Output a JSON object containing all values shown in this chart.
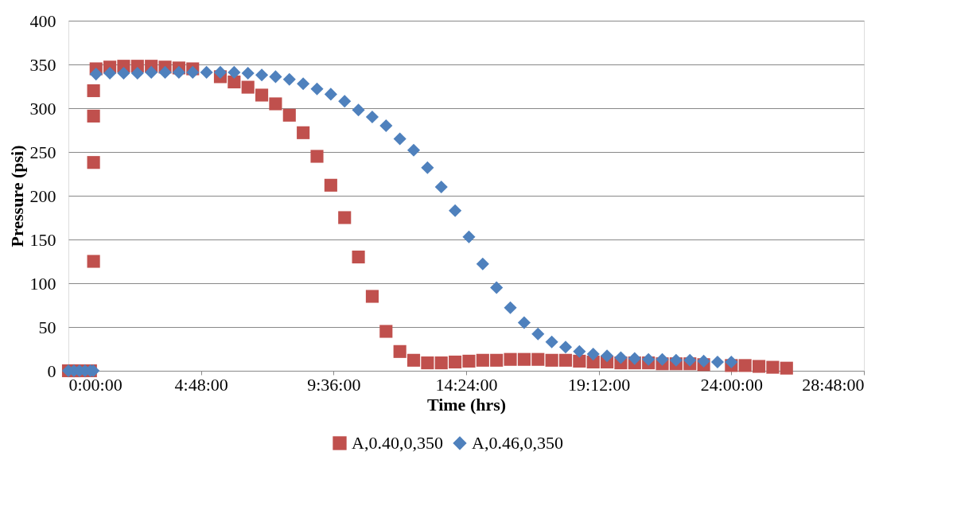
{
  "chart_data": {
    "type": "scatter",
    "xlabel": "Time (hrs)",
    "ylabel": "Pressure (psi)",
    "xlim": [
      0,
      28.8
    ],
    "xticks": [
      {
        "value": 0,
        "label": "0:00:00"
      },
      {
        "value": 4.8,
        "label": "4:48:00"
      },
      {
        "value": 9.6,
        "label": "9:36:00"
      },
      {
        "value": 14.4,
        "label": "14:24:00"
      },
      {
        "value": 19.2,
        "label": "19:12:00"
      },
      {
        "value": 24,
        "label": "24:00:00"
      },
      {
        "value": 28.8,
        "label": "28:48:00"
      }
    ],
    "ylim": [
      0,
      400
    ],
    "yticks": [
      0,
      50,
      100,
      150,
      200,
      250,
      300,
      350,
      400
    ],
    "grid": "y",
    "legend": "bottom",
    "series": [
      {
        "name": "A,0.40,0,350",
        "color": "#c0504d",
        "marker": "square",
        "x": [
          0,
          0.2,
          0.4,
          0.63,
          0.8,
          0.91,
          0.91,
          0.91,
          0.91,
          1.0,
          1.5,
          2,
          2.5,
          3,
          3.5,
          4,
          4.5,
          5,
          5.5,
          6,
          6.5,
          7,
          7.5,
          8,
          8.5,
          9,
          9.5,
          10,
          10.5,
          11,
          11.5,
          12,
          12.5,
          13,
          13.5,
          14,
          14.5,
          15,
          15.5,
          16,
          16.5,
          17,
          17.5,
          18,
          18.5,
          19,
          19.5,
          20,
          20.5,
          21,
          21.5,
          22,
          22.5,
          23,
          23.5,
          24,
          24.5,
          25,
          25.5,
          26
        ],
        "values": [
          0,
          0,
          0,
          null,
          0,
          125,
          238,
          291,
          320,
          345,
          347,
          348,
          348,
          348,
          347,
          346,
          345,
          null,
          336,
          330,
          324,
          315,
          305,
          292,
          272,
          245,
          212,
          175,
          130,
          85,
          45,
          22,
          12,
          9,
          9,
          10,
          11,
          12,
          12,
          13,
          13,
          13,
          12,
          12,
          11,
          10,
          10,
          9,
          9,
          9,
          8,
          8,
          8,
          7,
          null,
          6,
          6,
          5,
          4,
          3
        ]
      },
      {
        "name": "A,0.46,0,350",
        "color": "#4f81bd",
        "marker": "diamond",
        "x": [
          0,
          0.2,
          0.4,
          0.6,
          0.8,
          0.9,
          1.0,
          1.5,
          2,
          2.5,
          3,
          3.5,
          4,
          4.5,
          5,
          5.5,
          6,
          6.5,
          7,
          7.5,
          8,
          8.5,
          9,
          9.5,
          10,
          10.5,
          11,
          11.5,
          12,
          12.5,
          13,
          13.5,
          14,
          14.5,
          15,
          15.5,
          16,
          16.5,
          17,
          17.5,
          18,
          18.5,
          19,
          19.5,
          20,
          20.5,
          21,
          21.5,
          22,
          22.5,
          23,
          23.5,
          24
        ],
        "values": [
          0,
          0,
          0,
          0,
          0,
          0,
          339,
          340,
          340,
          340,
          341,
          341,
          341,
          341,
          341,
          341,
          341,
          340,
          338,
          336,
          333,
          328,
          322,
          316,
          308,
          298,
          290,
          280,
          265,
          252,
          232,
          210,
          183,
          153,
          122,
          95,
          72,
          55,
          42,
          33,
          27,
          22,
          19,
          17,
          15,
          14,
          13,
          13,
          12,
          12,
          11,
          10,
          10
        ]
      }
    ]
  }
}
